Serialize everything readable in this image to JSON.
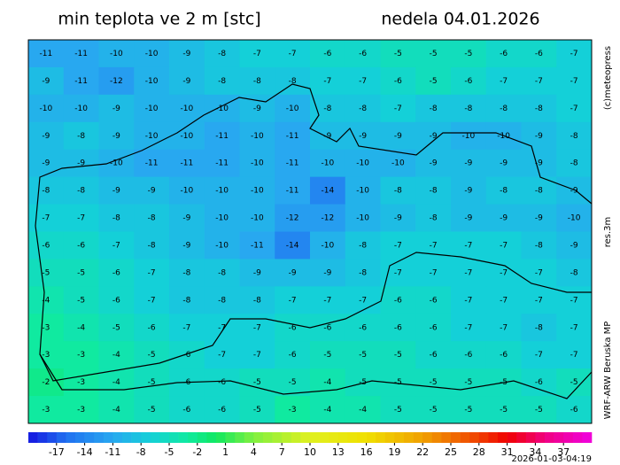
{
  "header": {
    "title": "min teplota ve 2 m [stc]",
    "date": "nedela 04.01.2026"
  },
  "side": {
    "copyright": "(c)meteopress",
    "resolution": "res.3m",
    "model": "WRF-ARW Beruska MP"
  },
  "timestamp": "2026-01-03-04:19",
  "map": {
    "grid": [
      [
        -11,
        -11,
        -10,
        -10,
        -9,
        -8,
        -7,
        -7,
        -6,
        -6,
        -5,
        -5,
        -5,
        -6,
        -6,
        -7
      ],
      [
        -9,
        -11,
        -12,
        -10,
        -9,
        -8,
        -8,
        -8,
        -7,
        -7,
        -6,
        -5,
        -6,
        -7,
        -7,
        -7
      ],
      [
        -10,
        -10,
        -9,
        -10,
        -10,
        -10,
        -9,
        -10,
        -8,
        -8,
        -7,
        -8,
        -8,
        -8,
        -8,
        -7
      ],
      [
        -9,
        -8,
        -9,
        -10,
        -10,
        -11,
        -10,
        -11,
        -9,
        -9,
        -9,
        -9,
        -10,
        -10,
        -9,
        -8
      ],
      [
        -9,
        -9,
        -10,
        -11,
        -11,
        -11,
        -10,
        -11,
        -10,
        -10,
        -10,
        -9,
        -9,
        -9,
        -9,
        -8
      ],
      [
        -8,
        -8,
        -9,
        -9,
        -10,
        -10,
        -10,
        -11,
        -14,
        -10,
        -8,
        -8,
        -9,
        -8,
        -8,
        -9
      ],
      [
        -7,
        -7,
        -8,
        -8,
        -9,
        -10,
        -10,
        -12,
        -12,
        -10,
        -9,
        -8,
        -9,
        -9,
        -9,
        -10
      ],
      [
        -6,
        -6,
        -7,
        -8,
        -9,
        -10,
        -11,
        -14,
        -10,
        -8,
        -7,
        -7,
        -7,
        -7,
        -8,
        -9
      ],
      [
        -5,
        -5,
        -6,
        -7,
        -8,
        -8,
        -9,
        -9,
        -9,
        -8,
        -7,
        -7,
        -7,
        -7,
        -7,
        -8
      ],
      [
        -4,
        -5,
        -6,
        -7,
        -8,
        -8,
        -8,
        -7,
        -7,
        -7,
        -6,
        -6,
        -7,
        -7,
        -7,
        -7
      ],
      [
        -3,
        -4,
        -5,
        -6,
        -7,
        -7,
        -7,
        -6,
        -6,
        -6,
        -6,
        -6,
        -7,
        -7,
        -8,
        -7
      ],
      [
        -3,
        -3,
        -4,
        -5,
        -6,
        -7,
        -7,
        -6,
        -5,
        -5,
        -5,
        -6,
        -6,
        -6,
        -7,
        -7
      ],
      [
        -2,
        -3,
        -4,
        -5,
        -6,
        -6,
        -5,
        -5,
        -4,
        -5,
        -5,
        -5,
        -5,
        -5,
        -6,
        -5
      ],
      [
        -3,
        -3,
        -4,
        -5,
        -6,
        -6,
        -5,
        -3,
        -4,
        -4,
        -5,
        -5,
        -5,
        -5,
        -5,
        -6
      ]
    ]
  },
  "colorbar": {
    "min": -20,
    "max": 40,
    "step": 1,
    "ticks": [
      -17,
      -14,
      -11,
      -8,
      -5,
      -2,
      1,
      4,
      7,
      10,
      13,
      16,
      19,
      22,
      25,
      28,
      31,
      34,
      37
    ],
    "stops": [
      {
        "value": -20,
        "color": "#1414e0"
      },
      {
        "value": -16,
        "color": "#2070f0"
      },
      {
        "value": -11,
        "color": "#28a8f0"
      },
      {
        "value": -7,
        "color": "#14d0d8"
      },
      {
        "value": -3,
        "color": "#10eaa0"
      },
      {
        "value": 0,
        "color": "#10e860"
      },
      {
        "value": 4,
        "color": "#80f040"
      },
      {
        "value": 10,
        "color": "#e0f020"
      },
      {
        "value": 16,
        "color": "#f0e000"
      },
      {
        "value": 22,
        "color": "#f0a000"
      },
      {
        "value": 28,
        "color": "#f04000"
      },
      {
        "value": 31,
        "color": "#f00000"
      },
      {
        "value": 35,
        "color": "#f00080"
      },
      {
        "value": 40,
        "color": "#f000e0"
      }
    ]
  }
}
